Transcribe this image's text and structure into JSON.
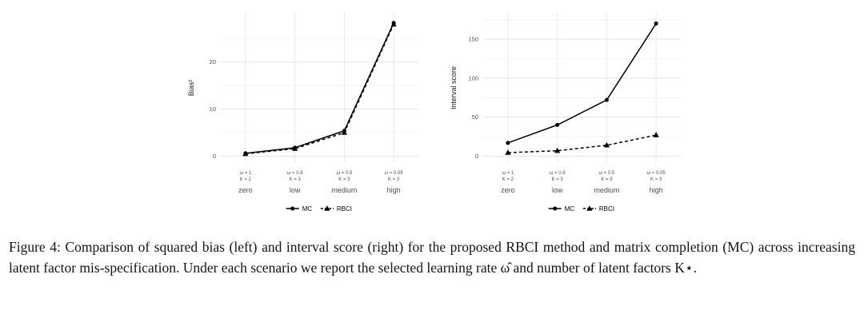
{
  "figure": {
    "caption": {
      "text": "Figure 4: Comparison of squared bias (left) and interval score (right) for the proposed RBCI method and matrix completion (MC) across increasing latent factor mis-specification. Under each scenario we report the selected learning rate ω̂ and number of latent factors K⋆."
    }
  },
  "chart_data": [
    {
      "type": "line",
      "title": "",
      "xlabel": "",
      "ylabel": "Bias²",
      "categories": [
        "zero",
        "low",
        "medium",
        "high"
      ],
      "x_sublabels": [
        [
          "ω = 1",
          "K = 2"
        ],
        [
          "ω = 0.8",
          "K = 3"
        ],
        [
          "ω = 0.5",
          "K = 3"
        ],
        [
          "ω = 0.05",
          "K = 3"
        ]
      ],
      "series": [
        {
          "name": "MC",
          "line": "solid",
          "marker": "circle",
          "values": [
            0.6,
            1.8,
            5.4,
            28.3
          ]
        },
        {
          "name": "RBCI",
          "line": "dashed",
          "marker": "triangle",
          "values": [
            0.5,
            1.6,
            5.0,
            28.0
          ]
        }
      ],
      "yticks": [
        0,
        10,
        20
      ],
      "yticks_minor": [
        5,
        15,
        25
      ],
      "ylim": [
        0,
        29
      ],
      "grid": true,
      "legend_position": "bottom",
      "colors": {
        "line": "#000000",
        "grid_major": "#e4e4e4",
        "grid_minor": "#f1f1f1",
        "tick_text": "#4d4d4d",
        "axis_title": "#1a1a1a"
      }
    },
    {
      "type": "line",
      "title": "",
      "xlabel": "",
      "ylabel": "Interval score",
      "categories": [
        "zero",
        "low",
        "medium",
        "high"
      ],
      "x_sublabels": [
        [
          "ω = 1",
          "K = 2"
        ],
        [
          "ω = 0.8",
          "K = 3"
        ],
        [
          "ω = 0.5",
          "K = 3"
        ],
        [
          "ω = 0.05",
          "K = 3"
        ]
      ],
      "series": [
        {
          "name": "MC",
          "line": "solid",
          "marker": "circle",
          "values": [
            17,
            40,
            72,
            170
          ]
        },
        {
          "name": "RBCI",
          "line": "dashed",
          "marker": "triangle",
          "values": [
            4.5,
            7,
            14,
            27
          ]
        }
      ],
      "yticks": [
        0,
        50,
        100,
        150
      ],
      "yticks_minor": [
        25,
        75,
        125,
        175
      ],
      "ylim": [
        0,
        175
      ],
      "grid": true,
      "legend_position": "bottom",
      "colors": {
        "line": "#000000",
        "grid_major": "#e4e4e4",
        "grid_minor": "#f1f1f1",
        "tick_text": "#4d4d4d",
        "axis_title": "#1a1a1a"
      }
    }
  ]
}
